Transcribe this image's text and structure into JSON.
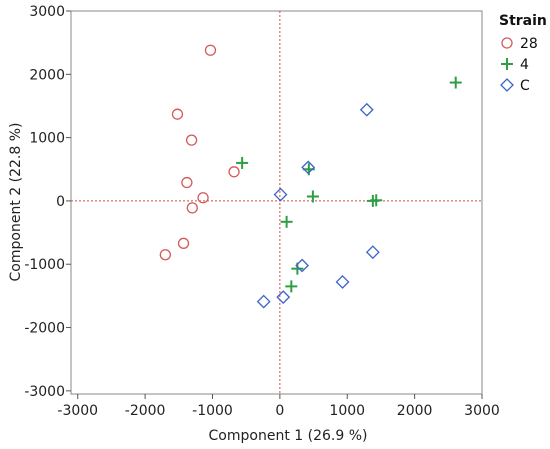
{
  "chart_data": {
    "type": "scatter",
    "xlabel": "Component 1 (26.9 %)",
    "ylabel": "Component 2 (22.8 %)",
    "xlim": [
      -3100,
      3000
    ],
    "ylim": [
      -3050,
      3000
    ],
    "xticks": [
      -3000,
      -2000,
      -1000,
      0,
      1000,
      2000,
      3000
    ],
    "yticks": [
      -3000,
      -2000,
      -1000,
      0,
      1000,
      2000,
      3000
    ],
    "reference_lines": {
      "x": 0,
      "y": 0,
      "color": "#d04a4a",
      "style": "dashed"
    },
    "grid": false,
    "legend": {
      "title": "Strain",
      "position": "right"
    },
    "series": [
      {
        "name": "28",
        "marker": "circle",
        "color": "#d45a5a",
        "points": [
          [
            -1030,
            2380
          ],
          [
            -1520,
            1370
          ],
          [
            -1310,
            960
          ],
          [
            -680,
            460
          ],
          [
            -1380,
            290
          ],
          [
            -1140,
            50
          ],
          [
            -1300,
            -110
          ],
          [
            -1430,
            -670
          ],
          [
            -1700,
            -850
          ]
        ]
      },
      {
        "name": "4",
        "marker": "plus",
        "color": "#2e9e44",
        "points": [
          [
            2610,
            1870
          ],
          [
            -560,
            600
          ],
          [
            430,
            500
          ],
          [
            490,
            70
          ],
          [
            1380,
            0
          ],
          [
            1430,
            10
          ],
          [
            100,
            -330
          ],
          [
            260,
            -1070
          ],
          [
            170,
            -1350
          ]
        ]
      },
      {
        "name": "C",
        "marker": "diamond",
        "color": "#3b63c9",
        "points": [
          [
            1290,
            1440
          ],
          [
            420,
            530
          ],
          [
            10,
            100
          ],
          [
            330,
            -1020
          ],
          [
            1380,
            -810
          ],
          [
            930,
            -1280
          ],
          [
            50,
            -1520
          ],
          [
            -240,
            -1590
          ]
        ]
      }
    ]
  }
}
